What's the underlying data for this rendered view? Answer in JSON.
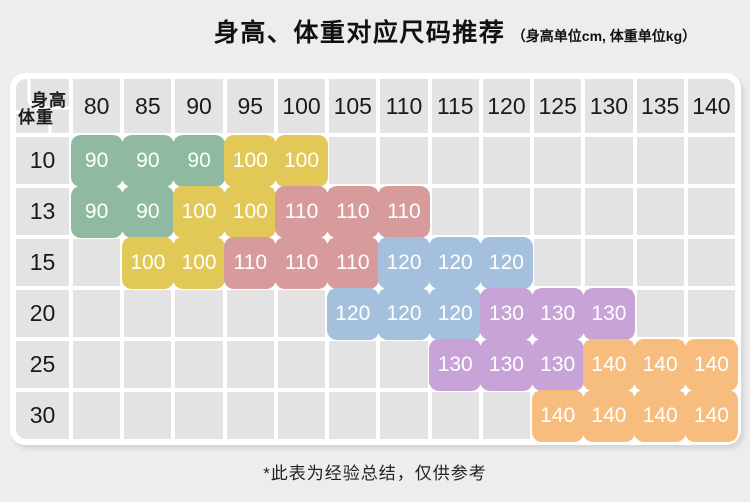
{
  "title": {
    "main": "身高、体重对应尺码推荐",
    "unit_note": "（身高单位cm, 体重单位kg）"
  },
  "footer": {
    "note": "*此表为经验总结，仅供参考"
  },
  "theme": {
    "page_bg": "#ededed",
    "panel_bg": "#ffffff",
    "cell_bg": "#e3e3e3",
    "text_dark": "#1c1c1c",
    "chip_text": "#ffffff"
  },
  "table": {
    "corner": {
      "top_right": "身高",
      "bottom_left": "体重"
    },
    "size_colors": {
      "90": "#8fb9a0",
      "100": "#e2c857",
      "110": "#d89b9b",
      "120": "#a5c0dd",
      "130": "#c7a3d7",
      "140": "#f6bd7e"
    }
  },
  "chart_data": {
    "type": "heatmap",
    "title": "身高、体重对应尺码推荐",
    "x_label": "身高",
    "y_label": "体重",
    "x_unit": "cm",
    "y_unit": "kg",
    "x": [
      80,
      85,
      90,
      95,
      100,
      105,
      110,
      115,
      120,
      125,
      130,
      135,
      140
    ],
    "y": [
      10,
      13,
      15,
      20,
      25,
      30
    ],
    "values": [
      [
        90,
        90,
        90,
        100,
        100,
        null,
        null,
        null,
        null,
        null,
        null,
        null,
        null
      ],
      [
        90,
        90,
        100,
        100,
        110,
        110,
        110,
        null,
        null,
        null,
        null,
        null,
        null
      ],
      [
        null,
        100,
        100,
        110,
        110,
        110,
        120,
        120,
        120,
        null,
        null,
        null,
        null
      ],
      [
        null,
        null,
        null,
        null,
        null,
        120,
        120,
        120,
        130,
        130,
        130,
        null,
        null
      ],
      [
        null,
        null,
        null,
        null,
        null,
        null,
        null,
        130,
        130,
        130,
        140,
        140,
        140
      ],
      [
        null,
        null,
        null,
        null,
        null,
        null,
        null,
        null,
        null,
        140,
        140,
        140,
        140
      ]
    ],
    "legend": [
      "90",
      "100",
      "110",
      "120",
      "130",
      "140"
    ],
    "grid": true,
    "annotation": "*此表为经验总结，仅供参考"
  }
}
